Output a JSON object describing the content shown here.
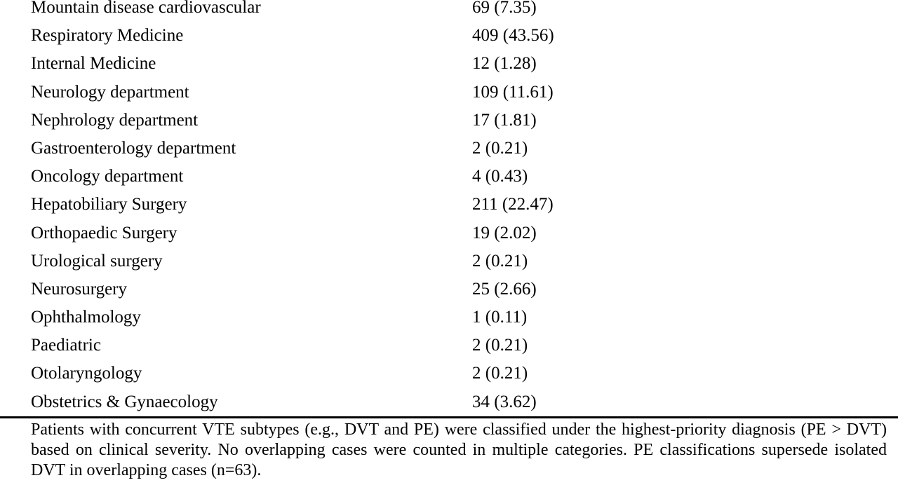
{
  "table": {
    "rows": [
      [
        "Mountain disease cardiovascular",
        "69 (7.35)"
      ],
      [
        "Respiratory Medicine",
        "409 (43.56)"
      ],
      [
        "Internal Medicine",
        "12 (1.28)"
      ],
      [
        "Neurology department",
        "109 (11.61)"
      ],
      [
        "Nephrology department",
        "17 (1.81)"
      ],
      [
        "Gastroenterology department",
        "2 (0.21)"
      ],
      [
        "Oncology department",
        "4 (0.43)"
      ],
      [
        "Hepatobiliary Surgery",
        "211 (22.47)"
      ],
      [
        "Orthopaedic Surgery",
        "19 (2.02)"
      ],
      [
        "Urological surgery",
        "2 (0.21)"
      ],
      [
        "Neurosurgery",
        "25 (2.66)"
      ],
      [
        "Ophthalmology",
        "1 (0.11)"
      ],
      [
        "Paediatric",
        "2 (0.21)"
      ],
      [
        "Otolaryngology",
        "2 (0.21)"
      ],
      [
        "Obstetrics & Gynaecology",
        "34 (3.62)"
      ]
    ]
  },
  "footnote": "Patients with concurrent VTE subtypes (e.g., DVT and PE) were classified under the highest-priority diagnosis (PE > DVT) based on clinical severity. No overlapping cases were counted in multiple categories. PE classifications supersede isolated DVT in overlapping cases (n=63)."
}
